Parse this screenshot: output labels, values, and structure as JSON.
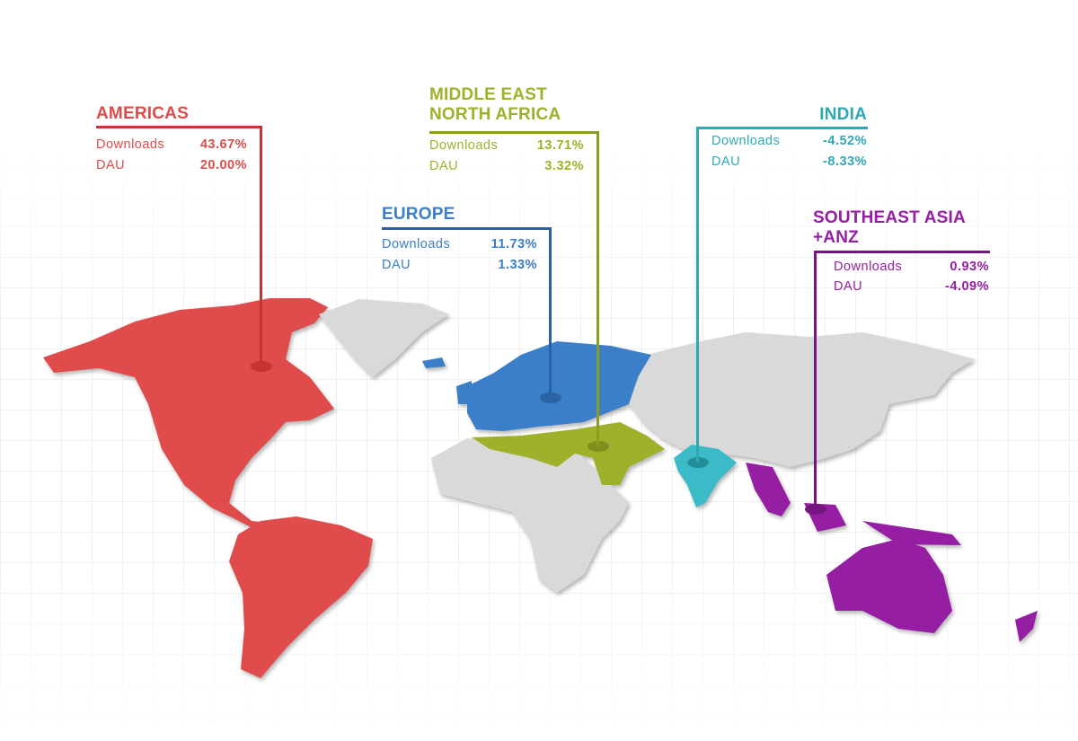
{
  "colors": {
    "americas": "#e04b4b",
    "mena": "#9fb02a",
    "europe": "#3a7fc8",
    "india": "#2fa8b5",
    "sea_anz": "#951ea3",
    "other_land": "#d9d9d9"
  },
  "regions": {
    "americas": {
      "title": "AMERICAS",
      "downloads_label": "Downloads",
      "downloads": "43.67%",
      "dau_label": "DAU",
      "dau": "20.00%"
    },
    "mena": {
      "title_line1": "MIDDLE EAST",
      "title_line2": "NORTH AFRICA",
      "downloads_label": "Downloads",
      "downloads": "13.71%",
      "dau_label": "DAU",
      "dau": "3.32%"
    },
    "europe": {
      "title": "EUROPE",
      "downloads_label": "Downloads",
      "downloads": "11.73%",
      "dau_label": "DAU",
      "dau": "1.33%"
    },
    "india": {
      "title": "INDIA",
      "downloads_label": "Downloads",
      "downloads": "-4.52%",
      "dau_label": "DAU",
      "dau": "-8.33%"
    },
    "sea_anz": {
      "title_line1": "SOUTHEAST ASIA",
      "title_line2": "+ANZ",
      "downloads_label": "Downloads",
      "downloads": "0.93%",
      "dau_label": "DAU",
      "dau": "-4.09%"
    }
  }
}
